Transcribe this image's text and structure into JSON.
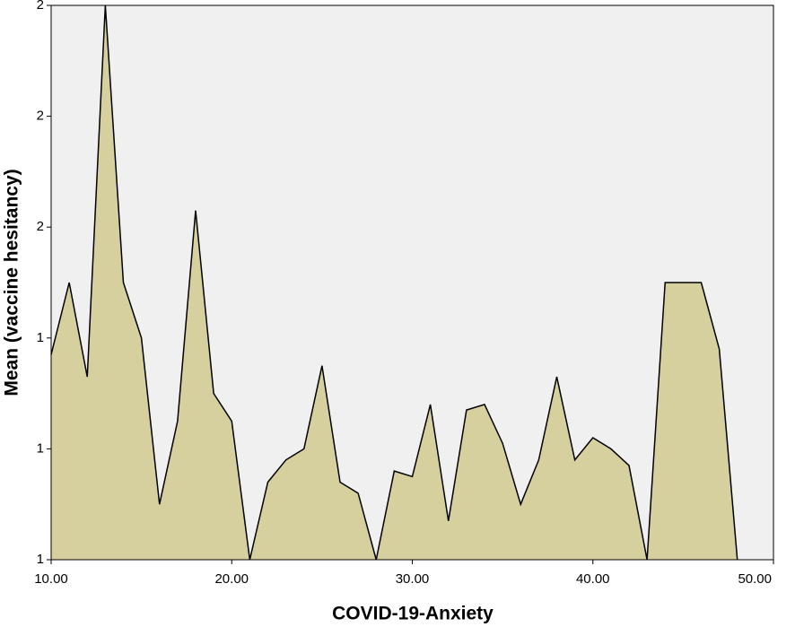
{
  "chart_data": {
    "type": "area",
    "x_label": "COVID-19-Anxiety",
    "y_label": "Mean (vaccine hesitancy)",
    "x": [
      10,
      11,
      12,
      13,
      14,
      15,
      16,
      17,
      18,
      19,
      20,
      21,
      22,
      23,
      24,
      25,
      26,
      27,
      28,
      29,
      30,
      31,
      32,
      33,
      34,
      35,
      36,
      37,
      38,
      39,
      40,
      41,
      42,
      43,
      44,
      45,
      46,
      47,
      48
    ],
    "values": [
      1.37,
      1.5,
      1.33,
      2.0,
      1.5,
      1.4,
      1.1,
      1.25,
      1.63,
      1.3,
      1.25,
      1.0,
      1.14,
      1.18,
      1.2,
      1.35,
      1.14,
      1.12,
      1.0,
      1.16,
      1.15,
      1.28,
      1.07,
      1.27,
      1.28,
      1.21,
      1.1,
      1.18,
      1.33,
      1.18,
      1.22,
      1.2,
      1.17,
      1.0,
      1.5,
      1.5,
      1.5,
      1.38,
      1.0
    ],
    "color": "#d6cf9e",
    "xlim": [
      10,
      50
    ],
    "xticks": [
      {
        "value": 10,
        "label": "10.00"
      },
      {
        "value": 20,
        "label": "20.00"
      },
      {
        "value": 30,
        "label": "30.00"
      },
      {
        "value": 40,
        "label": "40.00"
      },
      {
        "value": 50,
        "label": "50.00"
      }
    ],
    "ylim": [
      1,
      2
    ],
    "yticks": [
      1,
      {
        "value": 1.2,
        "label": "1"
      },
      {
        "value": 1.4,
        "label": "1"
      },
      {
        "value": 1.6,
        "label": "2"
      },
      {
        "value": 1.8,
        "label": "2"
      },
      2
    ]
  }
}
